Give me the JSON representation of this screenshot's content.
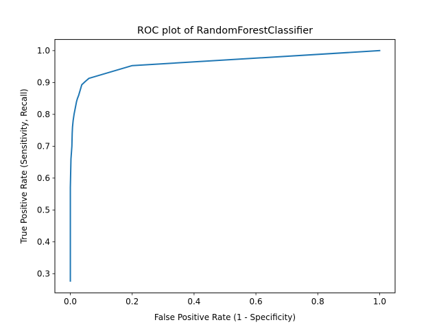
{
  "chart_data": {
    "type": "line",
    "title": "ROC plot of RandomForestClassifier",
    "xlabel": "False Positive Rate (1 - Specificity)",
    "ylabel": "True Positive Rate (Sensitivity, Recall)",
    "xlim": [
      -0.05,
      1.05
    ],
    "ylim": [
      0.24,
      1.035
    ],
    "x_ticks": [
      "0.0",
      "0.2",
      "0.4",
      "0.6",
      "0.8",
      "1.0"
    ],
    "y_ticks": [
      "0.3",
      "0.4",
      "0.5",
      "0.6",
      "0.7",
      "0.8",
      "0.9",
      "1.0"
    ],
    "grid": false,
    "series": [
      {
        "color": "#1f77b4",
        "x": [
          0.0,
          0.0,
          0.0,
          0.002,
          0.005,
          0.006,
          0.007,
          0.009,
          0.012,
          0.016,
          0.02,
          0.023,
          0.027,
          0.037,
          0.048,
          0.06,
          0.2,
          1.0
        ],
        "y": [
          0.277,
          0.45,
          0.57,
          0.66,
          0.7,
          0.74,
          0.76,
          0.78,
          0.8,
          0.82,
          0.84,
          0.85,
          0.86,
          0.893,
          0.903,
          0.913,
          0.953,
          1.0
        ]
      }
    ]
  }
}
